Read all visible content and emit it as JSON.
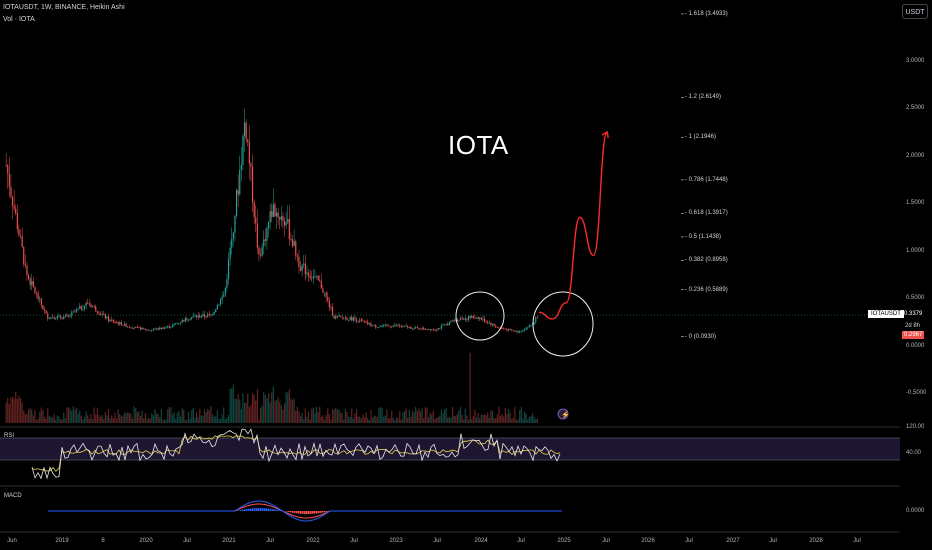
{
  "header": {
    "symbol_line": "IOTAUSDT, 1W, BINANCE, Heikin Ashi",
    "volume_line": "Vol · IOTA"
  },
  "annotation": {
    "text": "IOTA"
  },
  "currency_button": "USDT",
  "y_axis_ticks": [
    "3.0000",
    "2.5000",
    "2.0000",
    "1.5000",
    "1.0000",
    "0.5000",
    "0.0000",
    "-0.5000"
  ],
  "rsi_axis_ticks": [
    "120.00",
    "40.00"
  ],
  "macd_axis_ticks": [
    "0.0000"
  ],
  "x_axis_ticks": [
    "Jun",
    "2019",
    "8",
    "2020",
    "Jul",
    "2021",
    "Jul",
    "2022",
    "Jul",
    "2023",
    "Jul",
    "2024",
    "Jul",
    "2025",
    "Jul",
    "2026",
    "Jul",
    "2027",
    "Jul",
    "2028",
    "Jul"
  ],
  "fib_levels": [
    {
      "label": "1.618 (3.4933)",
      "price": 3.4933
    },
    {
      "label": "1.2 (2.6149)",
      "price": 2.6149
    },
    {
      "label": "1 (2.1946)",
      "price": 2.1946
    },
    {
      "label": "0.786 (1.7448)",
      "price": 1.7448
    },
    {
      "label": "0.618 (1.3917)",
      "price": 1.3917
    },
    {
      "label": "0.5 (1.1438)",
      "price": 1.1438
    },
    {
      "label": "0.382 (0.8958)",
      "price": 0.8958
    },
    {
      "label": "0.236 (0.5889)",
      "price": 0.5889
    },
    {
      "label": "0 (0.0930)",
      "price": 0.093
    }
  ],
  "price_tags": {
    "symbol_tag": "IOTAUSDT",
    "last_price": "0.3379",
    "countdown": "2d 8h",
    "low_tag": "0.2967"
  },
  "panels": {
    "rsi_label": "RSI",
    "macd_label": "MACD"
  },
  "colors": {
    "up": "#26a69a",
    "down": "#ef5350",
    "projection": "#ff2a2a",
    "rsi_line": "#e8e8e8",
    "rsi_ma": "#e8d44d",
    "rsi_band": "#1e1530",
    "macd_line": "#2962ff",
    "signal_line": "#ff5252"
  },
  "chart_data": {
    "type": "line",
    "title": "IOTAUSDT, 1W, BINANCE, Heikin Ashi",
    "series": [
      {
        "name": "IOTAUSDT",
        "x": [
          "2018-06",
          "2018-09",
          "2018-12",
          "2019-03",
          "2019-06",
          "2019-09",
          "2019-12",
          "2020-03",
          "2020-06",
          "2020-09",
          "2020-12",
          "2021-02",
          "2021-04",
          "2021-05",
          "2021-07",
          "2021-09",
          "2021-11",
          "2022-01",
          "2022-04",
          "2022-06",
          "2022-09",
          "2022-12",
          "2023-03",
          "2023-06",
          "2023-09",
          "2023-12",
          "2024-03",
          "2024-06",
          "2024-09",
          "2024-11",
          "2024-12"
        ],
        "values": [
          1.9,
          0.75,
          0.3,
          0.3,
          0.45,
          0.27,
          0.2,
          0.16,
          0.2,
          0.3,
          0.32,
          0.55,
          1.7,
          2.4,
          0.9,
          1.45,
          1.3,
          0.85,
          0.65,
          0.3,
          0.28,
          0.2,
          0.21,
          0.18,
          0.17,
          0.28,
          0.3,
          0.19,
          0.14,
          0.22,
          0.3379
        ]
      }
    ],
    "projection": {
      "x": [
        "2024-12",
        "2025-02",
        "2025-04",
        "2025-06",
        "2025-08",
        "2025-10"
      ],
      "values": [
        0.35,
        0.28,
        0.45,
        1.35,
        0.95,
        2.25
      ]
    },
    "ylim": [
      -0.5,
      3.5
    ],
    "fib_retracement": true,
    "grid": false
  }
}
